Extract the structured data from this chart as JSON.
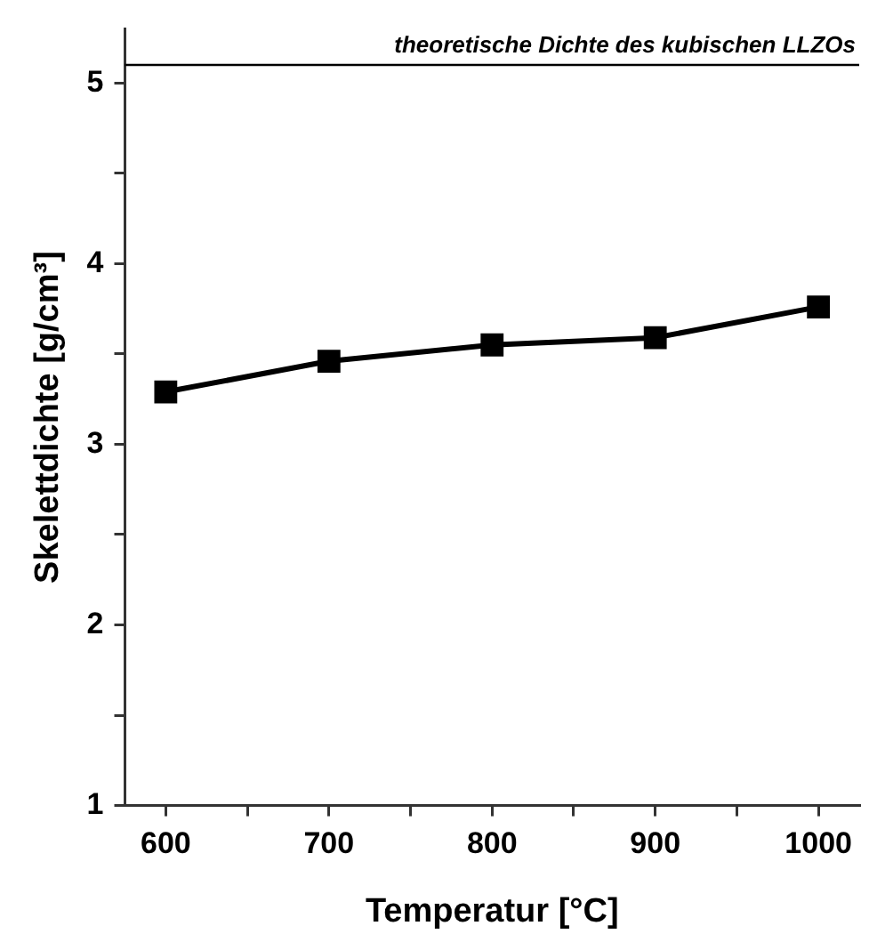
{
  "chart_data": {
    "type": "line",
    "xlabel": "Temperatur [°C]",
    "ylabel": "Skelettdichte [g/cm³]",
    "x": [
      600,
      700,
      800,
      900,
      1000
    ],
    "series": [
      {
        "color": "#000000",
        "values": [
          3.29,
          3.46,
          3.55,
          3.59,
          3.76
        ]
      }
    ],
    "xlim": [
      575,
      1025
    ],
    "xticks": [
      600,
      {
        "value": 650,
        "label": null
      },
      700,
      {
        "value": 750,
        "label": null
      },
      800,
      {
        "value": 850,
        "label": null
      },
      900,
      {
        "value": 950,
        "label": null
      },
      1000
    ],
    "ylim": [
      1,
      5.3
    ],
    "yticks": [
      1,
      {
        "value": 1.5,
        "label": null
      },
      2,
      {
        "value": 2.5,
        "label": null
      },
      3,
      {
        "value": 3.5,
        "label": null
      },
      4,
      {
        "value": 4.5,
        "label": null
      },
      5
    ],
    "ref_lines": [
      {
        "axis": "y",
        "value": 5.1,
        "label": "theoretische Dichte des kubischen LLZOs",
        "color": "#000000",
        "line_style": "solid"
      }
    ],
    "grid": false,
    "legend": false,
    "marker": "square",
    "line_style": "solid"
  }
}
